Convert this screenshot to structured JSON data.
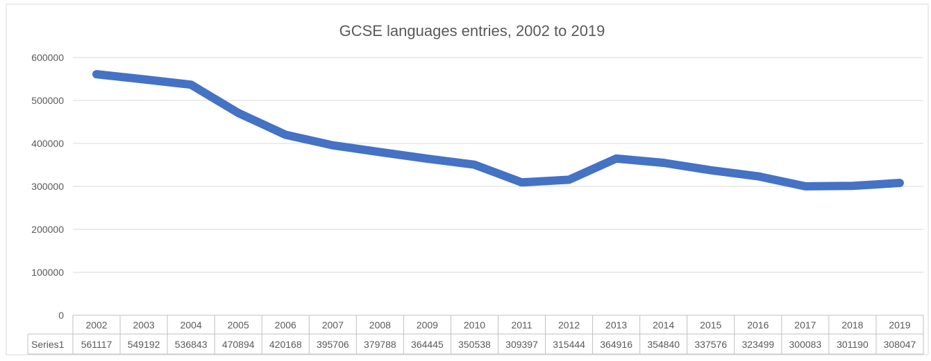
{
  "chart_data": {
    "type": "line",
    "title": "GCSE languages entries, 2002 to 2019",
    "categories": [
      "2002",
      "2003",
      "2004",
      "2005",
      "2006",
      "2007",
      "2008",
      "2009",
      "2010",
      "2011",
      "2012",
      "2013",
      "2014",
      "2015",
      "2016",
      "2017",
      "2018",
      "2019"
    ],
    "series": [
      {
        "name": "Series1",
        "values": [
          561117,
          549192,
          536843,
          470894,
          420168,
          395706,
          379788,
          364445,
          350538,
          309397,
          315444,
          364916,
          354840,
          337576,
          323499,
          300083,
          301190,
          308047
        ]
      }
    ],
    "ylim": [
      0,
      600000
    ],
    "yticks": [
      "0",
      "100000",
      "200000",
      "300000",
      "400000",
      "500000",
      "600000"
    ],
    "grid": true,
    "legend": "data-table",
    "series_color": "#4472C4"
  }
}
